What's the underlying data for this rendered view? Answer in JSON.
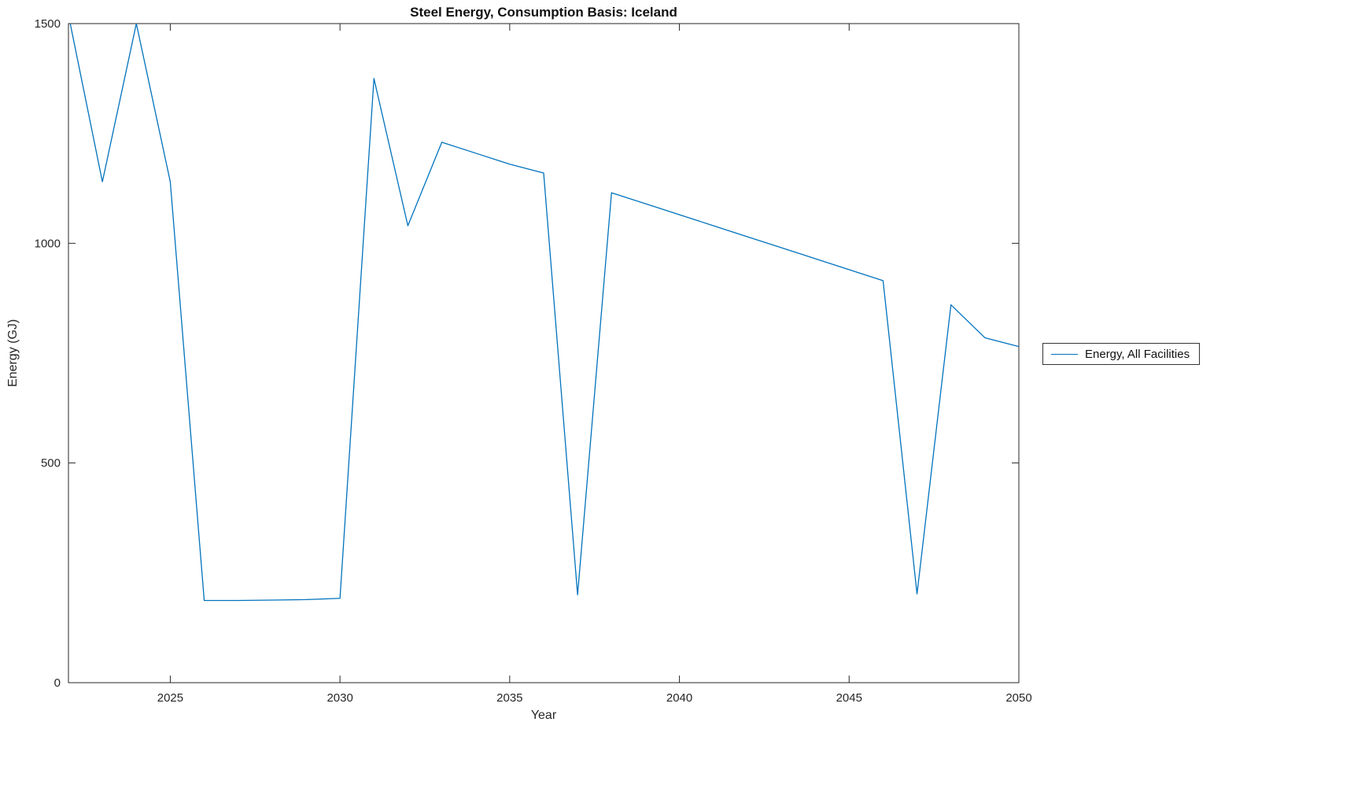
{
  "chart_data": {
    "type": "line",
    "title": "Steel Energy, Consumption Basis: Iceland",
    "xlabel": "Year",
    "ylabel": "Energy (GJ)",
    "xlim": [
      2022,
      2050
    ],
    "ylim": [
      0,
      1500
    ],
    "x_ticks": [
      2025,
      2030,
      2035,
      2040,
      2045,
      2050
    ],
    "y_ticks": [
      0,
      500,
      1000,
      1500
    ],
    "grid": false,
    "legend": {
      "position": "right-outside",
      "entries": [
        "Energy, All Facilities"
      ]
    },
    "series": [
      {
        "name": "Energy, All Facilities",
        "color": "#0072BD",
        "x": [
          2022,
          2023,
          2024,
          2025,
          2026,
          2027,
          2028,
          2029,
          2030,
          2031,
          2032,
          2033,
          2034,
          2035,
          2036,
          2037,
          2038,
          2039,
          2040,
          2041,
          2042,
          2043,
          2044,
          2045,
          2046,
          2047,
          2048,
          2049,
          2050
        ],
        "values": [
          1520,
          1140,
          1500,
          1140,
          187,
          187,
          188,
          189,
          192,
          1375,
          1040,
          1230,
          1205,
          1180,
          1160,
          200,
          1115,
          1090,
          1065,
          1040,
          1015,
          990,
          965,
          940,
          915,
          202,
          860,
          785,
          765
        ]
      }
    ]
  }
}
